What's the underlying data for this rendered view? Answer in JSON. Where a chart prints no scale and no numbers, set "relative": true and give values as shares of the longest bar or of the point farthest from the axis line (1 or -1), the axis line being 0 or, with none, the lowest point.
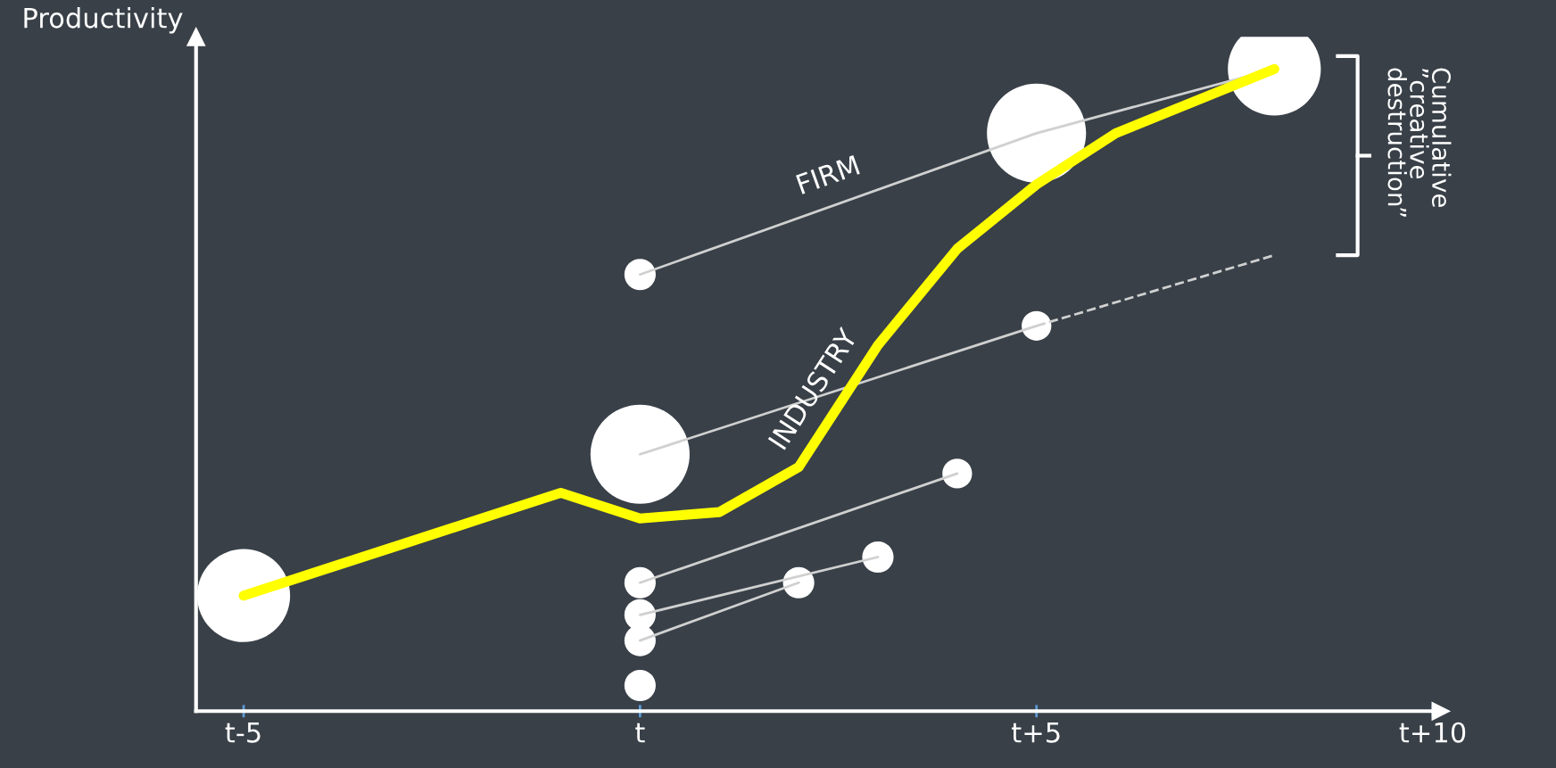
{
  "chart_data": {
    "type": "line",
    "relative": true,
    "ylabel": "Productivity",
    "categories": [
      "t-5",
      null,
      null,
      null,
      null,
      "t",
      null,
      null,
      null,
      null,
      "t+5",
      null,
      null,
      null,
      null,
      "t+10"
    ],
    "grid": false,
    "legend": false,
    "annotations": [
      "Cumulative\n”creative\ndestruction”"
    ],
    "series": [
      {
        "name": "FIRM",
        "color": "#d0d0d0",
        "values": [
          null,
          null,
          null,
          null,
          null,
          0.68,
          null,
          null,
          null,
          null,
          0.9,
          null,
          null,
          1.0,
          null,
          null
        ]
      },
      {
        "color": "#d0d0d0",
        "values": [
          null,
          null,
          null,
          null,
          null,
          0.4,
          null,
          null,
          null,
          null,
          0.6,
          null,
          null,
          null,
          null,
          null
        ]
      },
      {
        "color": "#d0d0d0",
        "line_style": "dashed",
        "values": [
          null,
          null,
          null,
          null,
          null,
          null,
          null,
          null,
          null,
          null,
          0.6,
          null,
          null,
          0.71,
          null,
          null
        ]
      },
      {
        "color": "#d0d0d0",
        "values": [
          null,
          null,
          null,
          null,
          null,
          0.2,
          null,
          null,
          null,
          0.37,
          null,
          null,
          null,
          null,
          null,
          null
        ]
      },
      {
        "color": "#d0d0d0",
        "values": [
          null,
          null,
          null,
          null,
          null,
          0.15,
          null,
          null,
          0.24,
          null,
          null,
          null,
          null,
          null,
          null,
          null
        ]
      },
      {
        "color": "#d0d0d0",
        "values": [
          null,
          null,
          null,
          null,
          null,
          0.11,
          null,
          0.2,
          null,
          null,
          null,
          null,
          null,
          null,
          null,
          null
        ]
      },
      {
        "type": "bubble",
        "color": "#ffffff",
        "values": [
          0.18,
          null,
          null,
          null,
          null,
          0.4,
          null,
          null,
          null,
          null,
          0.9,
          null,
          null,
          1.0,
          null,
          null
        ],
        "sizes": [
          0.88,
          null,
          null,
          null,
          null,
          1,
          null,
          null,
          null,
          null,
          1,
          null,
          null,
          0.88,
          null,
          null
        ]
      },
      {
        "type": "bubble",
        "color": "#ffffff",
        "values": [
          null,
          null,
          null,
          null,
          null,
          0.68,
          null,
          0.2,
          0.24,
          0.37,
          0.6,
          null,
          null,
          null,
          null,
          null
        ],
        "sizes": [
          null,
          null,
          null,
          null,
          null,
          0.1,
          null,
          0.1,
          0.1,
          0.09,
          0.09,
          null,
          null,
          null,
          null,
          null
        ]
      },
      {
        "type": "bubble",
        "color": "#ffffff",
        "values": [
          null,
          null,
          null,
          null,
          null,
          0.2,
          null,
          null,
          null,
          null,
          null,
          null,
          null,
          null,
          null,
          null
        ],
        "sizes": [
          null,
          null,
          null,
          null,
          null,
          0.1,
          null,
          null,
          null,
          null,
          null,
          null,
          null,
          null,
          null,
          null
        ]
      },
      {
        "type": "bubble",
        "color": "#ffffff",
        "values": [
          null,
          null,
          null,
          null,
          null,
          0.15,
          null,
          null,
          null,
          null,
          null,
          null,
          null,
          null,
          null,
          null
        ],
        "sizes": [
          null,
          null,
          null,
          null,
          null,
          0.1,
          null,
          null,
          null,
          null,
          null,
          null,
          null,
          null,
          null,
          null
        ]
      },
      {
        "type": "bubble",
        "color": "#ffffff",
        "values": [
          null,
          null,
          null,
          null,
          null,
          0.11,
          null,
          null,
          null,
          null,
          null,
          null,
          null,
          null,
          null,
          null
        ],
        "sizes": [
          null,
          null,
          null,
          null,
          null,
          0.1,
          null,
          null,
          null,
          null,
          null,
          null,
          null,
          null,
          null,
          null
        ]
      },
      {
        "type": "bubble",
        "color": "#ffffff",
        "values": [
          null,
          null,
          null,
          null,
          null,
          0.04,
          null,
          null,
          null,
          null,
          null,
          null,
          null,
          null,
          null,
          null
        ],
        "sizes": [
          null,
          null,
          null,
          null,
          null,
          0.1,
          null,
          null,
          null,
          null,
          null,
          null,
          null,
          null,
          null,
          null
        ]
      },
      {
        "name": "INDUSTRY",
        "color": "#ffff00",
        "values": [
          0.18,
          0.22,
          0.26,
          0.3,
          0.34,
          0.3,
          0.31,
          0.38,
          0.57,
          0.72,
          0.82,
          0.9,
          0.95,
          1.0,
          null,
          null
        ]
      }
    ]
  }
}
